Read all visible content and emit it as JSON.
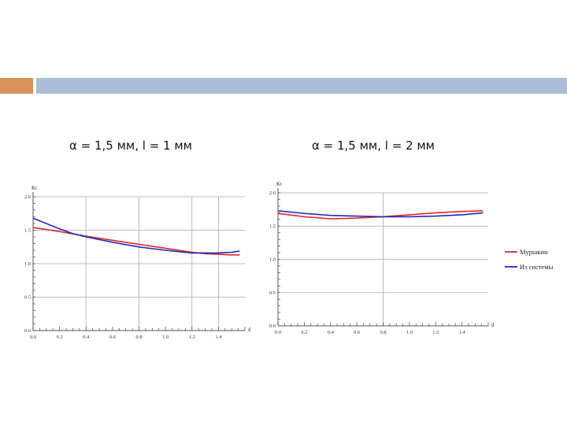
{
  "slide": {
    "accent_color": "#D99159",
    "bar_color": "#A9BDD6"
  },
  "chart_data": [
    {
      "type": "line",
      "title": "α = 1,5 мм, l = 1 мм",
      "xlabel": "d",
      "ylabel": "Kt",
      "xlim": [
        0,
        1.6
      ],
      "ylim": [
        0,
        2.0
      ],
      "xticks": [
        "0.0",
        "0.2",
        "0.4",
        "0.6",
        "0.8",
        "1.0",
        "1.2",
        "1.4"
      ],
      "yticks": [
        "0.0",
        "0.5",
        "1.0",
        "1.5",
        "2.0"
      ],
      "grid": true,
      "series": [
        {
          "color": "#E0272A",
          "x": [
            0,
            0.2,
            0.4,
            0.6,
            0.8,
            1.0,
            1.2,
            1.3,
            1.4,
            1.5,
            1.56
          ],
          "y": [
            1.54,
            1.48,
            1.41,
            1.35,
            1.29,
            1.23,
            1.17,
            1.15,
            1.14,
            1.13,
            1.13
          ]
        },
        {
          "color": "#1F2BB8",
          "x": [
            0,
            0.1,
            0.2,
            0.3,
            0.4,
            0.6,
            0.8,
            1.0,
            1.2,
            1.3,
            1.4,
            1.5,
            1.56
          ],
          "y": [
            1.68,
            1.6,
            1.52,
            1.45,
            1.4,
            1.32,
            1.25,
            1.2,
            1.16,
            1.16,
            1.16,
            1.17,
            1.19
          ]
        }
      ]
    },
    {
      "type": "line",
      "title": "α = 1,5 мм, l = 2 мм",
      "xlabel": "d",
      "ylabel": "Kt",
      "xlim": [
        0,
        1.6
      ],
      "ylim": [
        0,
        2.0
      ],
      "xticks": [
        "0.0",
        "0.2",
        "0.4",
        "0.6",
        "0.8",
        "1.0",
        "1.2",
        "1.4"
      ],
      "yticks": [
        "0.0",
        "0.5",
        "1.0",
        "1.5",
        "2.0"
      ],
      "grid": true,
      "legend_position": "right",
      "series": [
        {
          "name": "Муршкин",
          "color": "#E0272A",
          "x": [
            0,
            0.2,
            0.4,
            0.6,
            0.8,
            1.0,
            1.2,
            1.4,
            1.56
          ],
          "y": [
            1.69,
            1.64,
            1.61,
            1.62,
            1.64,
            1.67,
            1.7,
            1.72,
            1.73
          ]
        },
        {
          "name": "Из системы",
          "color": "#1F2BB8",
          "x": [
            0,
            0.2,
            0.4,
            0.6,
            0.8,
            1.0,
            1.2,
            1.4,
            1.56
          ],
          "y": [
            1.73,
            1.69,
            1.66,
            1.65,
            1.64,
            1.64,
            1.65,
            1.67,
            1.7
          ]
        }
      ]
    }
  ]
}
